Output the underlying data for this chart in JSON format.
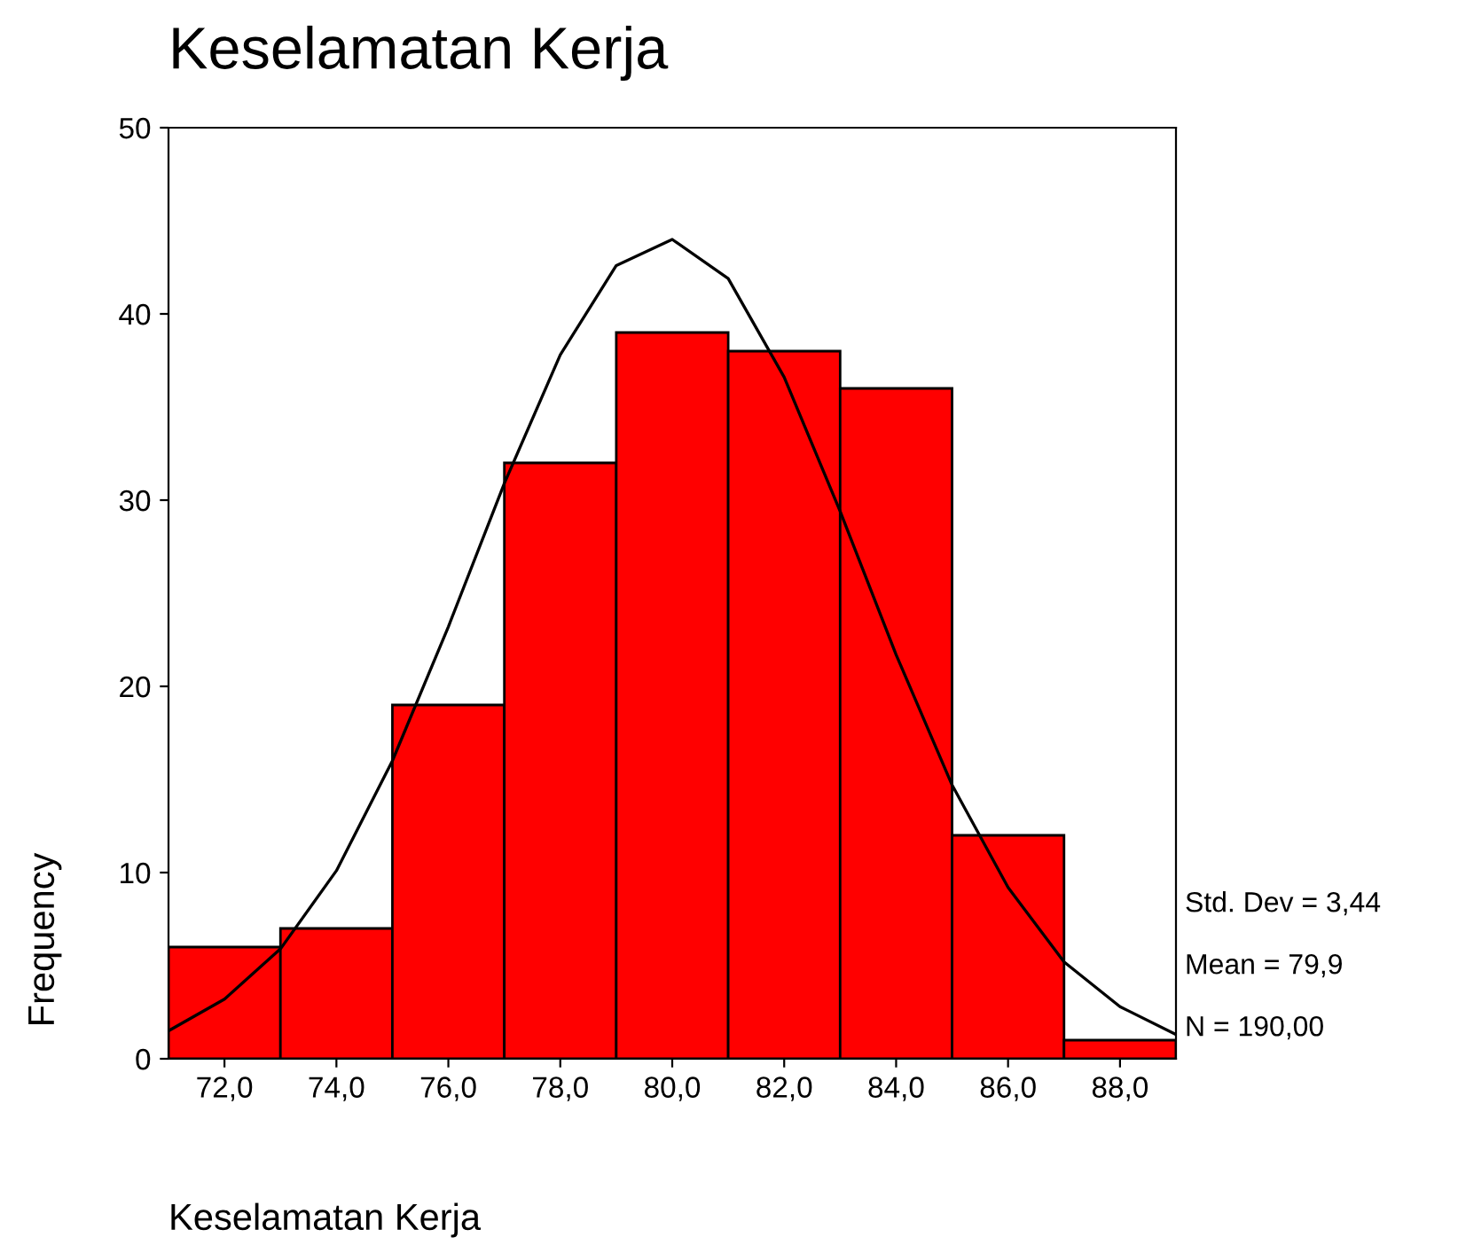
{
  "chart_data": {
    "type": "histogram",
    "title": "Keselamatan Kerja",
    "xlabel": "Keselamatan Kerja",
    "ylabel": "Frequency",
    "bins": [
      71,
      73,
      75,
      77,
      79,
      81,
      83,
      85,
      87,
      89
    ],
    "values": [
      6,
      7,
      19,
      32,
      39,
      38,
      36,
      12,
      1
    ],
    "color": "#ff0000",
    "series": [
      {
        "type": "line",
        "color": "#000000",
        "x": [
          71,
          72,
          73,
          74,
          75,
          76,
          77,
          78,
          79,
          80,
          81,
          82,
          83,
          84,
          85,
          86,
          87,
          88,
          89
        ],
        "values": [
          1.5,
          3.2,
          5.9,
          10.1,
          16,
          23.2,
          30.9,
          37.8,
          42.6,
          44,
          41.9,
          36.6,
          29.4,
          21.7,
          14.7,
          9.2,
          5.2,
          2.8,
          1.3
        ]
      }
    ],
    "xlim": [
      71,
      89
    ],
    "xticks": [
      {
        "value": 72,
        "label": "72,0"
      },
      {
        "value": 74,
        "label": "74,0"
      },
      {
        "value": 76,
        "label": "76,0"
      },
      {
        "value": 78,
        "label": "78,0"
      },
      {
        "value": 80,
        "label": "80,0"
      },
      {
        "value": 82,
        "label": "82,0"
      },
      {
        "value": 84,
        "label": "84,0"
      },
      {
        "value": 86,
        "label": "86,0"
      },
      {
        "value": 88,
        "label": "88,0"
      }
    ],
    "ylim": [
      0,
      50
    ],
    "yticks": [
      0,
      10,
      20,
      30,
      40,
      50
    ],
    "annotations": [
      "Std. Dev = 3,44",
      "Mean = 79,9",
      "N = 190,00"
    ],
    "grid": false,
    "legend": false
  }
}
